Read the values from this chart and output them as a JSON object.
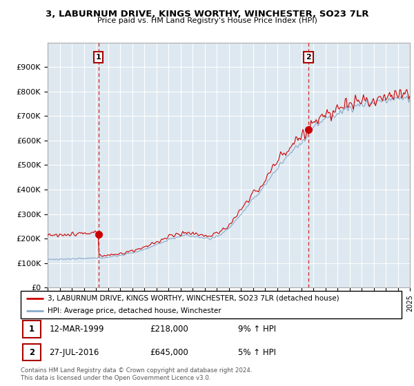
{
  "title": "3, LABURNUM DRIVE, KINGS WORTHY, WINCHESTER, SO23 7LR",
  "subtitle": "Price paid vs. HM Land Registry's House Price Index (HPI)",
  "legend_line1": "3, LABURNUM DRIVE, KINGS WORTHY, WINCHESTER, SO23 7LR (detached house)",
  "legend_line2": "HPI: Average price, detached house, Winchester",
  "annotation1_date": "12-MAR-1999",
  "annotation1_price": "£218,000",
  "annotation1_hpi": "9% ↑ HPI",
  "annotation2_date": "27-JUL-2016",
  "annotation2_price": "£645,000",
  "annotation2_hpi": "5% ↑ HPI",
  "footer": "Contains HM Land Registry data © Crown copyright and database right 2024.\nThis data is licensed under the Open Government Licence v3.0.",
  "ylim": [
    0,
    1000000
  ],
  "yticks": [
    0,
    100000,
    200000,
    300000,
    400000,
    500000,
    600000,
    700000,
    800000,
    900000
  ],
  "ytick_labels": [
    "£0",
    "£100K",
    "£200K",
    "£300K",
    "£400K",
    "£500K",
    "£600K",
    "£700K",
    "£800K",
    "£900K"
  ],
  "color_property": "#cc0000",
  "color_hpi": "#88aacc",
  "color_vline": "#cc0000",
  "marker1_x": 1999.2,
  "marker1_y": 218000,
  "marker2_x": 2016.6,
  "marker2_y": 645000,
  "vline1_x": 1999.2,
  "vline2_x": 2016.6,
  "xmin": 1995,
  "xmax": 2025,
  "plot_bg": "#dde8f0",
  "fig_bg": "#ffffff"
}
